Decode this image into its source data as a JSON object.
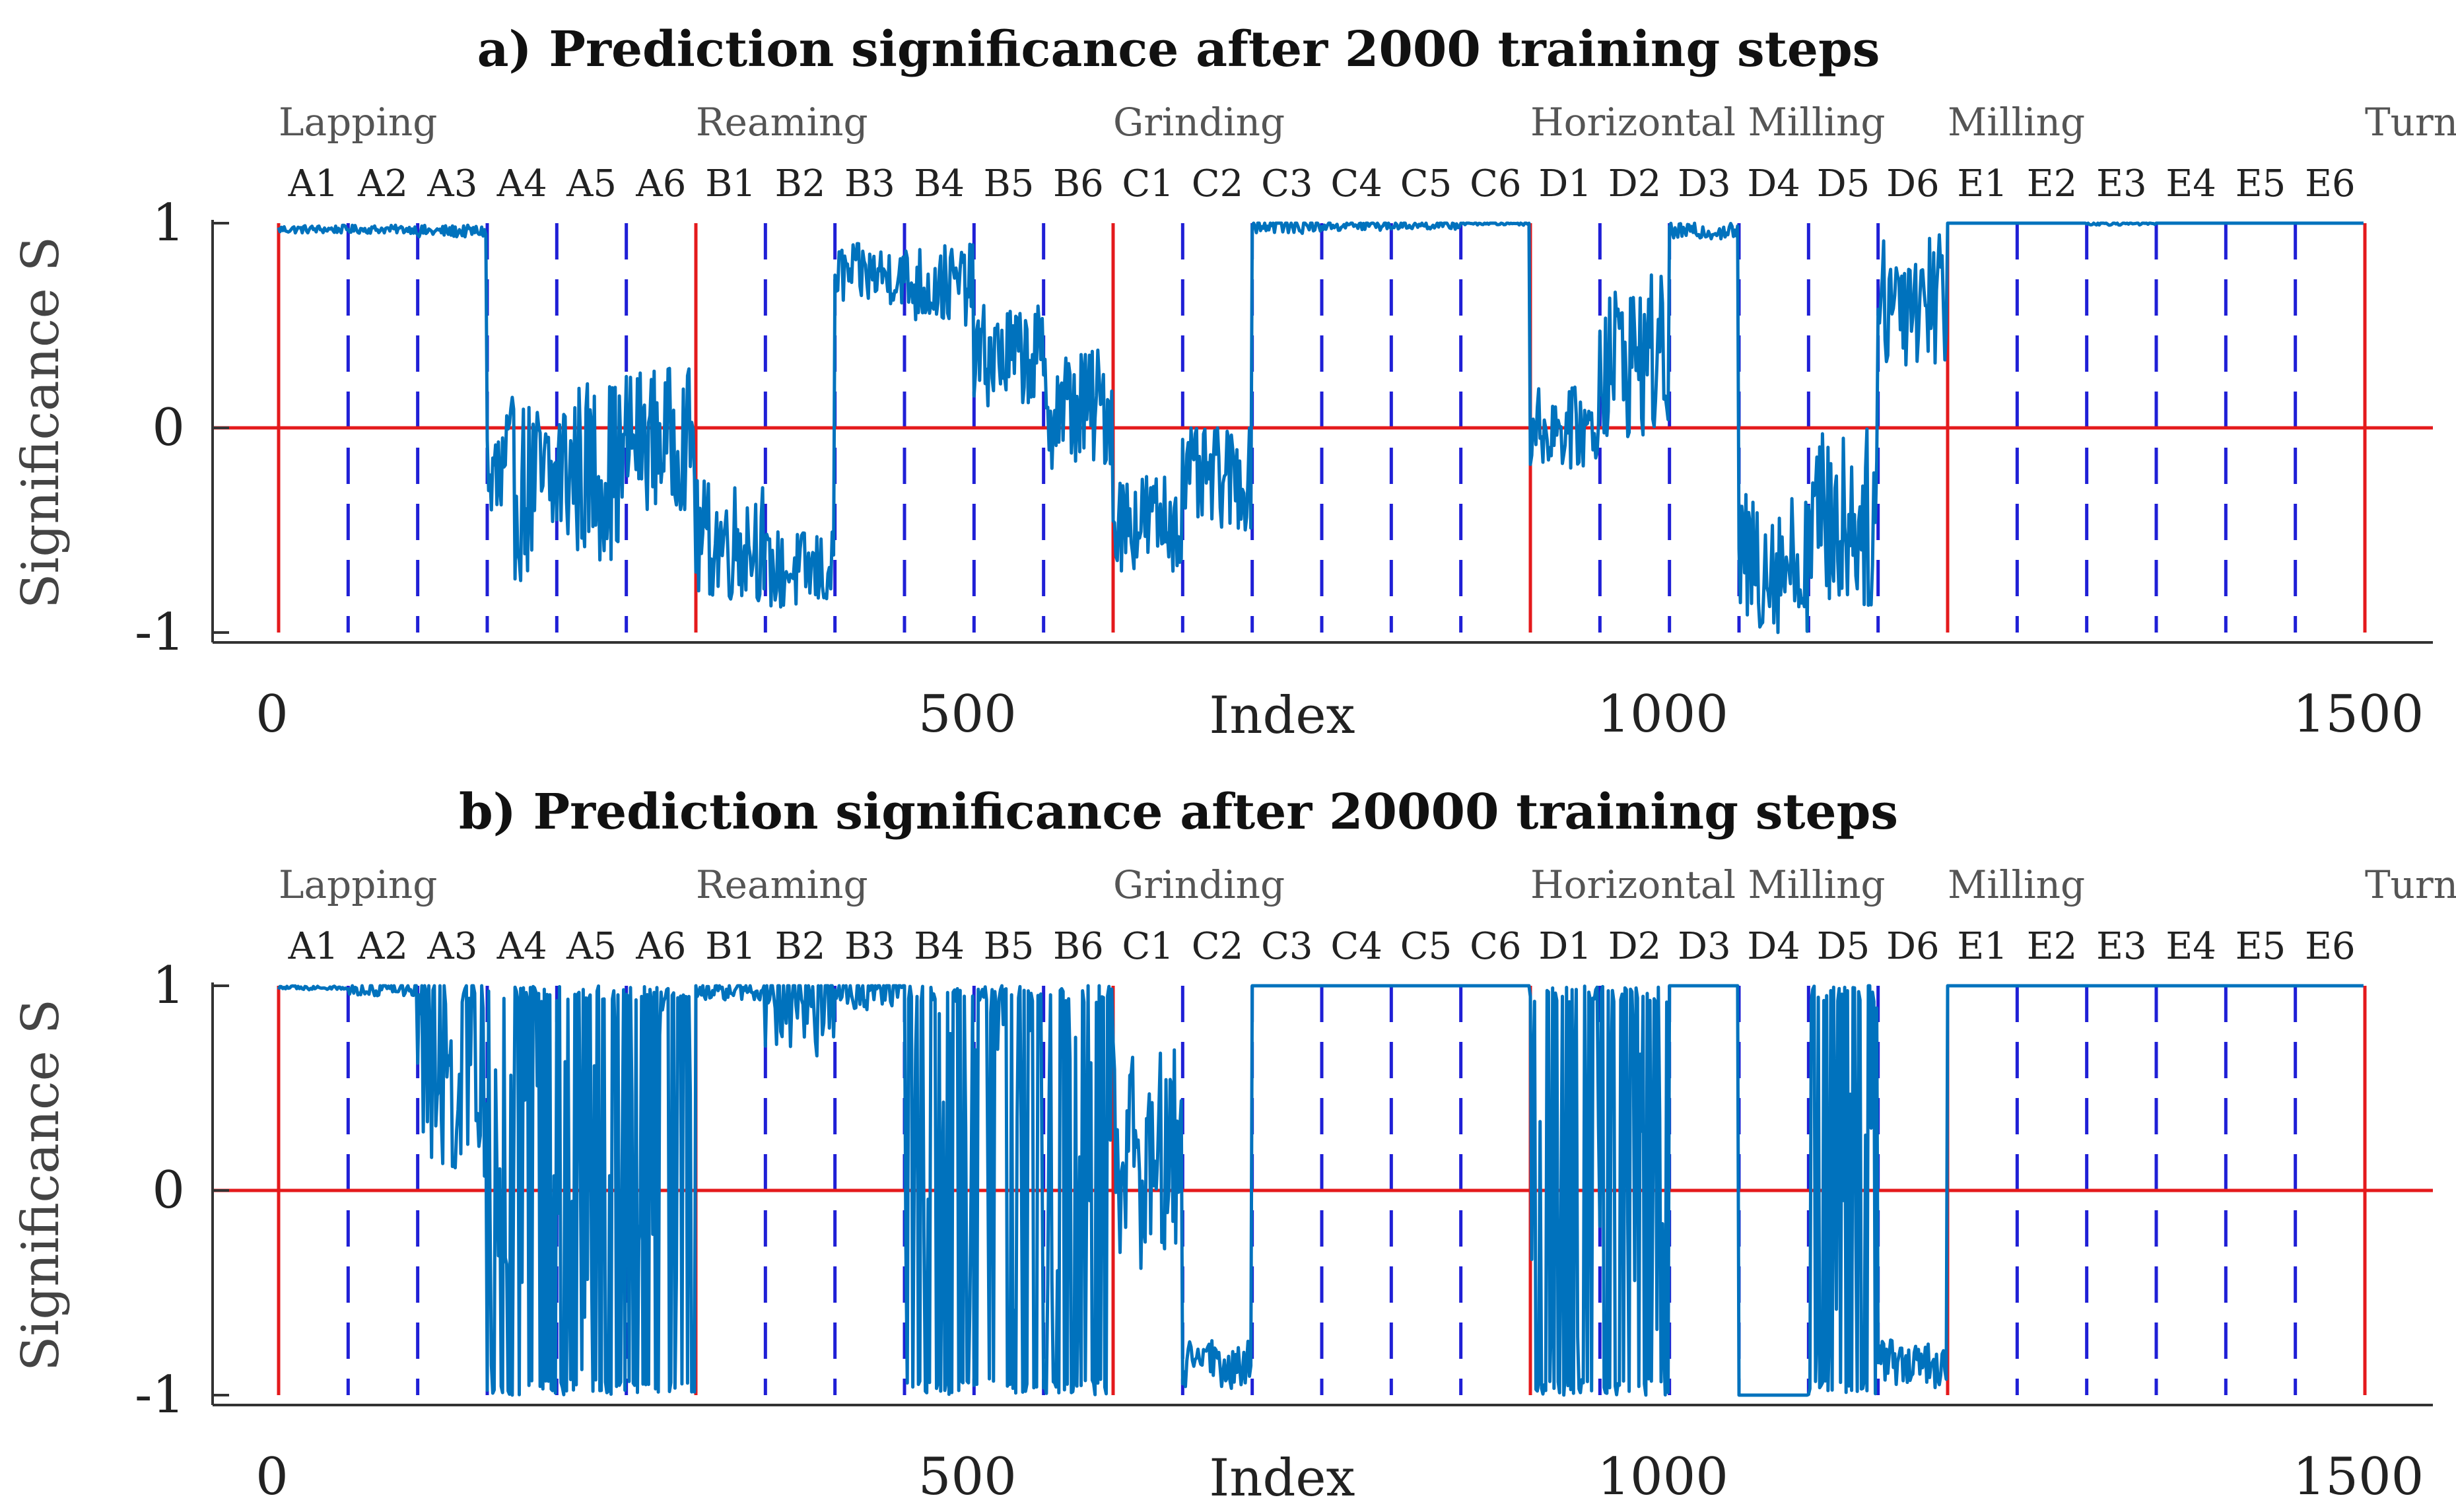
{
  "chart_data": [
    {
      "type": "line",
      "title": "a) Prediction significance after 2000 training steps",
      "xlabel": "Index",
      "ylabel": "Significance S",
      "xlim": [
        0,
        1600
      ],
      "ylim": [
        -1,
        1
      ],
      "x_ticks": [
        "0",
        "500",
        "1000",
        "1500"
      ],
      "y_ticks": [
        "1",
        "0",
        "-1"
      ],
      "groups": [
        "Lapping",
        "Reaming",
        "Grinding",
        "Horizontal Milling",
        "Milling",
        "Turning"
      ],
      "segments": [
        "A1",
        "A2",
        "A3",
        "A4",
        "A5",
        "A6",
        "B1",
        "B2",
        "B3",
        "B4",
        "B5",
        "B6",
        "C1",
        "C2",
        "C3",
        "C4",
        "C5",
        "C6",
        "D1",
        "D2",
        "D3",
        "D4",
        "D5",
        "D6",
        "E1",
        "E2",
        "E3",
        "E4",
        "E5",
        "E6"
      ],
      "series": [
        {
          "name": "Significance S",
          "color": "#0072BD",
          "segment_levels": [
            0.97,
            0.97,
            0.96,
            -0.3,
            -0.2,
            -0.05,
            -0.55,
            -0.7,
            0.75,
            0.7,
            0.35,
            0.1,
            -0.45,
            -0.25,
            0.99,
            0.99,
            0.99,
            1.0,
            0.0,
            0.35,
            0.96,
            -0.65,
            -0.45,
            0.65,
            1.0,
            1.0,
            1.0,
            1.0,
            1.0,
            1.0
          ],
          "segment_noise": [
            0.02,
            0.02,
            0.03,
            0.45,
            0.45,
            0.35,
            0.3,
            0.2,
            0.15,
            0.2,
            0.25,
            0.3,
            0.25,
            0.25,
            0.04,
            0.03,
            0.02,
            0.01,
            0.2,
            0.4,
            0.04,
            0.35,
            0.45,
            0.35,
            0.0,
            0.0,
            0.01,
            0.0,
            0.0,
            0.0
          ]
        }
      ]
    },
    {
      "type": "line",
      "title": "b) Prediction significance after 20000 training steps",
      "xlabel": "Index",
      "ylabel": "Significance S",
      "xlim": [
        0,
        1600
      ],
      "ylim": [
        -1,
        1
      ],
      "x_ticks": [
        "0",
        "500",
        "1000",
        "1500"
      ],
      "y_ticks": [
        "1",
        "0",
        "-1"
      ],
      "groups": [
        "Lapping",
        "Reaming",
        "Grinding",
        "Horizontal Milling",
        "Milling",
        "Turning"
      ],
      "segments": [
        "A1",
        "A2",
        "A3",
        "A4",
        "A5",
        "A6",
        "B1",
        "B2",
        "B3",
        "B4",
        "B5",
        "B6",
        "C1",
        "C2",
        "C3",
        "C4",
        "C5",
        "C6",
        "D1",
        "D2",
        "D3",
        "D4",
        "D5",
        "D6",
        "E1",
        "E2",
        "E3",
        "E4",
        "E5",
        "E6"
      ],
      "series": [
        {
          "name": "Significance S",
          "color": "#0072BD",
          "segment_levels": [
            0.99,
            0.98,
            0.6,
            -0.3,
            -0.2,
            0.0,
            0.98,
            0.95,
            0.98,
            0.3,
            0.3,
            0.4,
            0.2,
            -0.85,
            1.0,
            1.0,
            1.0,
            1.0,
            -0.1,
            0.0,
            1.0,
            -1.0,
            0.2,
            -0.85,
            1.0,
            1.0,
            1.0,
            1.0,
            1.0,
            1.0
          ],
          "segment_noise": [
            0.01,
            0.03,
            0.6,
            0.95,
            0.95,
            0.95,
            0.05,
            0.3,
            0.1,
            0.9,
            0.9,
            0.9,
            0.6,
            0.12,
            0.0,
            0.0,
            0.0,
            0.0,
            0.9,
            0.95,
            0.0,
            0.0,
            0.9,
            0.12,
            0.0,
            0.0,
            0.0,
            0.0,
            0.0,
            0.0
          ]
        }
      ]
    }
  ]
}
